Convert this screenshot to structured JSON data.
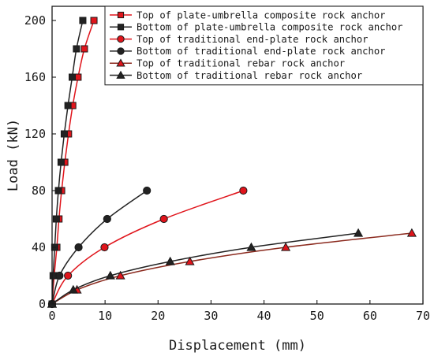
{
  "chart_data": {
    "type": "line",
    "xlabel": "Displacement (mm)",
    "ylabel": "Load (kN)",
    "xlim": [
      0,
      70
    ],
    "ylim": [
      0,
      210
    ],
    "xticks": [
      0,
      10,
      20,
      30,
      40,
      50,
      60,
      70
    ],
    "yticks": [
      0,
      40,
      80,
      120,
      160,
      200
    ],
    "grid": false,
    "legend_position": "top-right",
    "series": [
      {
        "name": "Top of plate-umbrella composite rock anchor",
        "color": "#e0141b",
        "line_color": "#e0141b",
        "marker": "square",
        "points": [
          [
            0,
            0
          ],
          [
            0.4,
            20
          ],
          [
            0.9,
            40
          ],
          [
            1.3,
            60
          ],
          [
            1.8,
            80
          ],
          [
            2.4,
            100
          ],
          [
            3.1,
            120
          ],
          [
            3.9,
            140
          ],
          [
            4.9,
            160
          ],
          [
            6.1,
            180
          ],
          [
            7.9,
            200
          ]
        ]
      },
      {
        "name": "Bottom of plate-umbrella composite rock anchor",
        "color": "#222222",
        "line_color": "#222222",
        "marker": "square",
        "points": [
          [
            0,
            0
          ],
          [
            0.2,
            20
          ],
          [
            0.5,
            40
          ],
          [
            0.8,
            60
          ],
          [
            1.2,
            80
          ],
          [
            1.7,
            100
          ],
          [
            2.3,
            120
          ],
          [
            3.0,
            140
          ],
          [
            3.8,
            160
          ],
          [
            4.6,
            180
          ],
          [
            5.8,
            200
          ]
        ]
      },
      {
        "name": "Top of traditional end-plate rock anchor",
        "color": "#e0141b",
        "line_color": "#e0141b",
        "marker": "circle",
        "points": [
          [
            0,
            0
          ],
          [
            3.0,
            20
          ],
          [
            9.9,
            40
          ],
          [
            21.1,
            60
          ],
          [
            36.1,
            80
          ]
        ]
      },
      {
        "name": "Bottom of traditional end-plate rock anchor",
        "color": "#222222",
        "line_color": "#222222",
        "marker": "circle",
        "points": [
          [
            0,
            0
          ],
          [
            1.4,
            20
          ],
          [
            5.0,
            40
          ],
          [
            10.4,
            60
          ],
          [
            17.9,
            80
          ]
        ]
      },
      {
        "name": "Top of traditional rebar rock anchor",
        "color": "#e0141b",
        "line_color": "#8b2a1e",
        "marker": "triangle",
        "points": [
          [
            0,
            0
          ],
          [
            4.7,
            10
          ],
          [
            12.9,
            20
          ],
          [
            26.0,
            30
          ],
          [
            44.1,
            40
          ],
          [
            67.9,
            50
          ]
        ]
      },
      {
        "name": "Bottom of traditional rebar rock anchor",
        "color": "#222222",
        "line_color": "#222222",
        "marker": "triangle",
        "points": [
          [
            0,
            0
          ],
          [
            4.0,
            10
          ],
          [
            11.0,
            20
          ],
          [
            22.3,
            30
          ],
          [
            37.6,
            40
          ],
          [
            57.8,
            50
          ]
        ]
      }
    ]
  }
}
